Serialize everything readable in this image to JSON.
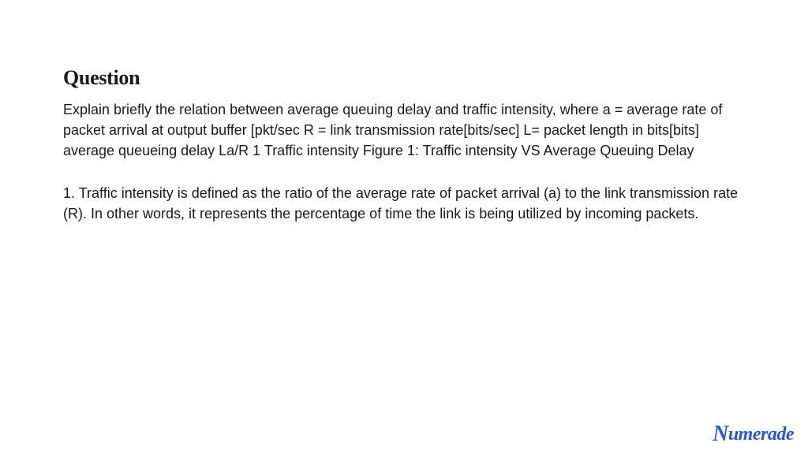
{
  "heading": "Question",
  "paragraph1": "Explain briefly the relation between average queuing delay and traffic intensity, where a = average rate of packet arrival at output buffer [pkt/sec R = link transmission rate[bits/sec] L= packet length in bits[bits] average queueing delay La/R 1 Traffic intensity Figure 1: Traffic intensity VS Average Queuing Delay",
  "paragraph2": "1. Traffic intensity is defined as the ratio of the average rate of packet arrival (a) to the link transmission rate (R). In other words, it represents the percentage of time the link is being utilized by incoming packets.",
  "logo": "Numerade",
  "colors": {
    "text": "#1a1a1a",
    "background": "#ffffff",
    "logo": "#2b57d6"
  },
  "typography": {
    "heading_fontsize": 26,
    "body_fontsize": 18,
    "logo_fontsize": 24,
    "heading_family": "Georgia, serif",
    "body_family": "-apple-system, Segoe UI, Arial, sans-serif"
  }
}
